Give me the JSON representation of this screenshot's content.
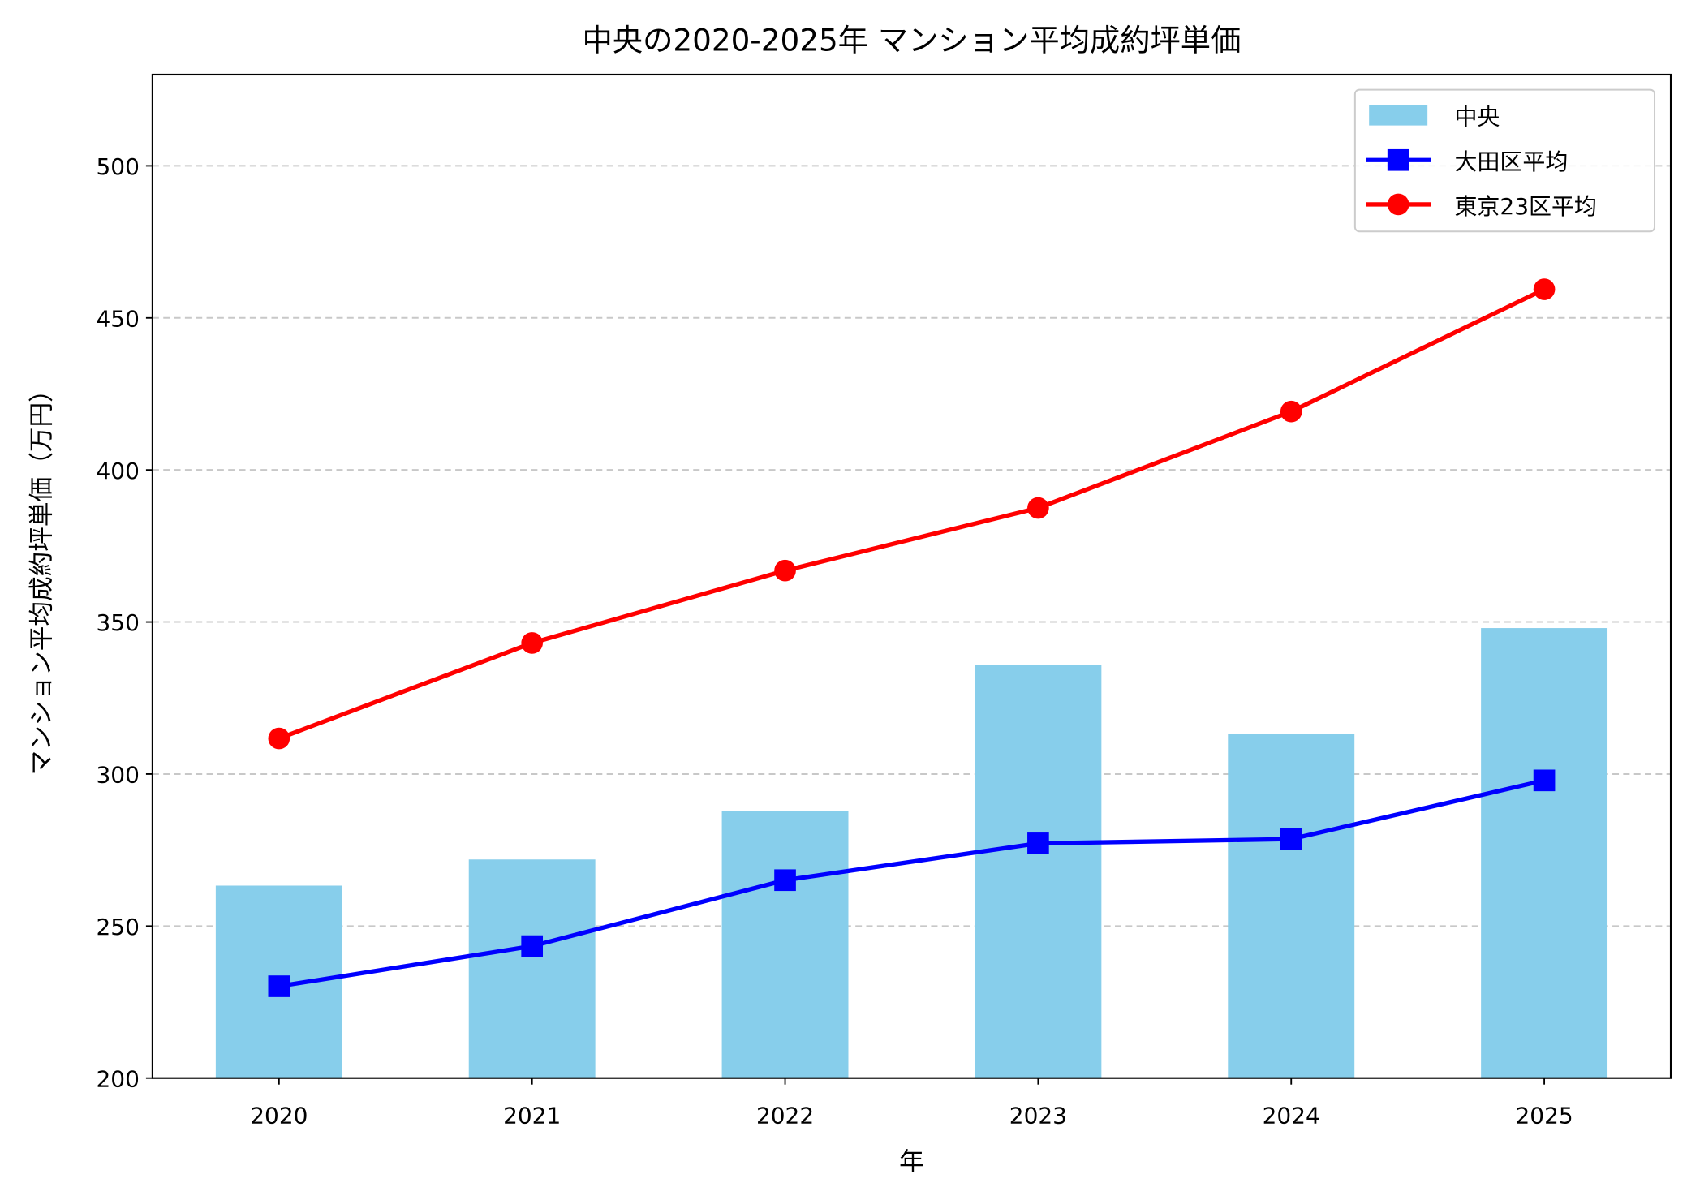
{
  "chart_data": {
    "type": "bar+line",
    "title": "中央の2020-2025年 マンション平均成約坪単価",
    "xlabel": "年",
    "ylabel": "マンション平均成約坪単価（万円）",
    "categories": [
      "2020",
      "2021",
      "2022",
      "2023",
      "2024",
      "2025"
    ],
    "ylim": [
      200,
      530
    ],
    "yticks": [
      200,
      250,
      300,
      350,
      400,
      450,
      500
    ],
    "grid": "y, dashed",
    "legend_position": "top-right",
    "series": [
      {
        "name": "中央",
        "kind": "bar",
        "color": "#87CEEB",
        "values": [
          263.3,
          271.9,
          287.9,
          335.9,
          313.2,
          348.0
        ]
      },
      {
        "name": "大田区平均",
        "kind": "line",
        "marker": "square",
        "color": "#0000FF",
        "values": [
          230.2,
          243.4,
          265.1,
          277.2,
          278.6,
          297.9
        ]
      },
      {
        "name": "東京23区平均",
        "kind": "line",
        "marker": "circle",
        "color": "#FF0000",
        "values": [
          311.7,
          343.1,
          366.9,
          387.5,
          419.2,
          459.4
        ]
      }
    ]
  }
}
